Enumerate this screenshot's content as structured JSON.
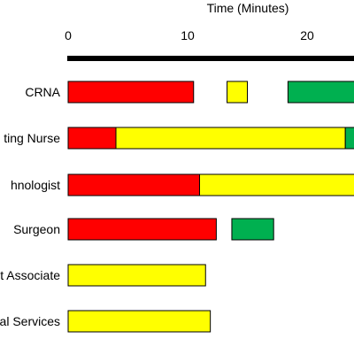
{
  "chart_data": {
    "type": "bar",
    "orientation": "horizontal",
    "stacked": false,
    "title": "",
    "xlabel": "Time (Minutes)",
    "ylabel": "",
    "x_axis_position": "top",
    "xlim": [
      0,
      24
    ],
    "x_ticks": [
      {
        "value": 0,
        "label": "0"
      },
      {
        "value": 10,
        "label": "10"
      },
      {
        "value": 20,
        "label": "20"
      }
    ],
    "grid": false,
    "legend": "none",
    "category_labels_visible": [
      "CRNA",
      "ting Nurse",
      "hnologist",
      "Surgeon",
      "t Associate",
      "al Services"
    ],
    "colors": {
      "red": "#ff0000",
      "yellow": "#ffff00",
      "green": "#00b050",
      "outline": "#000000"
    },
    "segments": [
      {
        "row": 0,
        "start": 0,
        "end": 10.5,
        "color": "red"
      },
      {
        "row": 0,
        "start": 13.3,
        "end": 15.0,
        "color": "yellow"
      },
      {
        "row": 0,
        "start": 18.4,
        "end": 24,
        "color": "green"
      },
      {
        "row": 1,
        "start": 0,
        "end": 4.0,
        "color": "red"
      },
      {
        "row": 1,
        "start": 4.0,
        "end": 23.2,
        "color": "yellow"
      },
      {
        "row": 1,
        "start": 23.2,
        "end": 24,
        "color": "green"
      },
      {
        "row": 2,
        "start": 0,
        "end": 11.0,
        "color": "red"
      },
      {
        "row": 2,
        "start": 11.0,
        "end": 24,
        "color": "yellow"
      },
      {
        "row": 3,
        "start": 0,
        "end": 12.4,
        "color": "red"
      },
      {
        "row": 3,
        "start": 13.7,
        "end": 17.2,
        "color": "green"
      },
      {
        "row": 4,
        "start": 0,
        "end": 11.5,
        "color": "yellow"
      },
      {
        "row": 5,
        "start": 0,
        "end": 11.9,
        "color": "yellow"
      }
    ]
  }
}
